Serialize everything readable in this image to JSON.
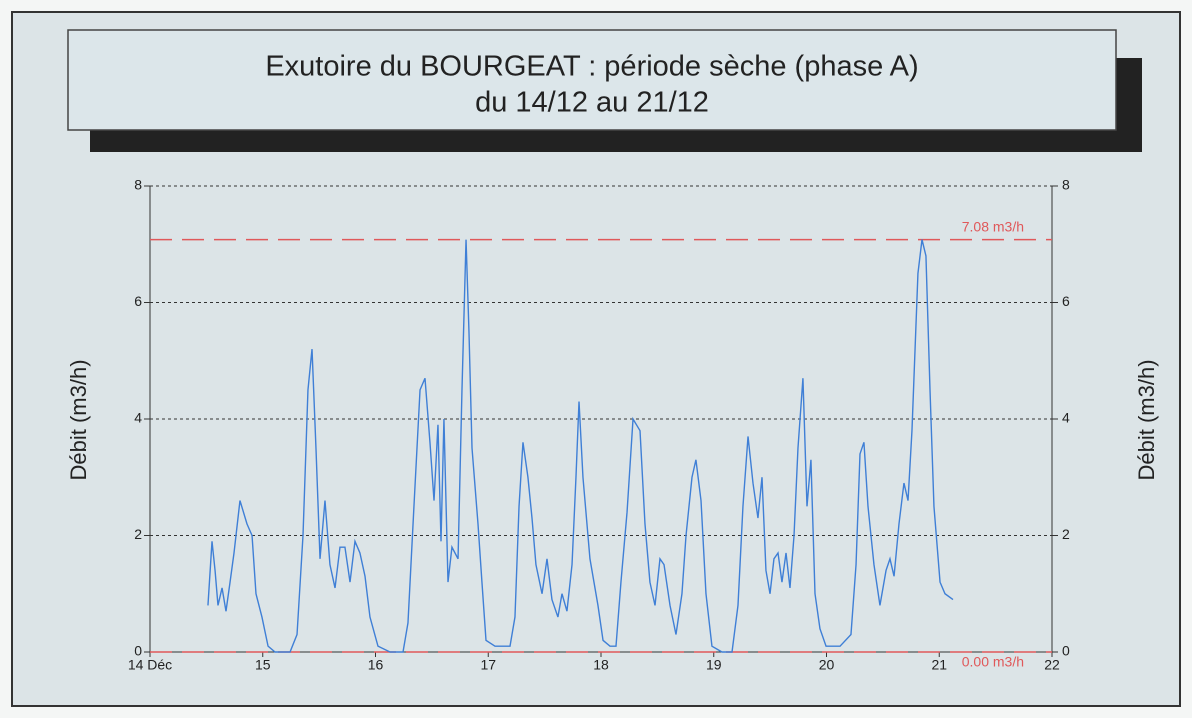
{
  "chart_data": {
    "type": "line",
    "title": "Exutoire du BOURGEAT : période sèche (phase A)",
    "subtitle": "du 14/12 au 21/12",
    "y_label": "Débit  (m3/h)",
    "y2_label": "Débit  (m3/h)",
    "xlim": [
      14,
      22
    ],
    "xticks": [
      {
        "value": 14,
        "label": "14 Déc"
      },
      15,
      16,
      17,
      18,
      19,
      20,
      21,
      22
    ],
    "ylim": [
      0,
      8
    ],
    "yticks": [
      0,
      2,
      4,
      6,
      8
    ],
    "y2lim": [
      0,
      8
    ],
    "y2ticks": [
      0,
      2,
      4,
      6,
      8
    ],
    "grid": true,
    "reference_lines": [
      {
        "value": 7.08,
        "label": "7.08 m3/h",
        "color": "#e0585a"
      },
      {
        "value": 0,
        "label": "0.00 m3/h",
        "color": "#e0585a"
      }
    ],
    "series": [
      {
        "color": "#3f7fd6",
        "x": [
          14.514,
          14.55,
          14.577,
          14.603,
          14.639,
          14.674,
          14.71,
          14.745,
          14.798,
          14.86,
          14.905,
          14.94,
          14.993,
          15.047,
          15.109,
          15.242,
          15.304,
          15.357,
          15.401,
          15.437,
          15.472,
          15.508,
          15.552,
          15.596,
          15.641,
          15.685,
          15.729,
          15.774,
          15.818,
          15.862,
          15.907,
          15.951,
          16.022,
          16.129,
          16.244,
          16.288,
          16.341,
          16.395,
          16.439,
          16.483,
          16.519,
          16.554,
          16.581,
          16.607,
          16.643,
          16.678,
          16.732,
          16.767,
          16.803,
          16.829,
          16.856,
          16.909,
          16.944,
          16.98,
          17.06,
          17.193,
          17.237,
          17.273,
          17.308,
          17.352,
          17.388,
          17.423,
          17.477,
          17.521,
          17.565,
          17.618,
          17.654,
          17.698,
          17.743,
          17.778,
          17.805,
          17.84,
          17.902,
          17.973,
          18.018,
          18.08,
          18.133,
          18.177,
          18.231,
          18.284,
          18.346,
          18.39,
          18.434,
          18.479,
          18.523,
          18.559,
          18.612,
          18.665,
          18.718,
          18.754,
          18.807,
          18.842,
          18.887,
          18.931,
          18.984,
          19.073,
          19.162,
          19.215,
          19.259,
          19.304,
          19.348,
          19.392,
          19.428,
          19.463,
          19.499,
          19.534,
          19.57,
          19.605,
          19.641,
          19.676,
          19.712,
          19.747,
          19.791,
          19.827,
          19.862,
          19.898,
          19.942,
          19.996,
          20.12,
          20.217,
          20.262,
          20.297,
          20.332,
          20.368,
          20.421,
          20.474,
          20.528,
          20.563,
          20.599,
          20.643,
          20.687,
          20.723,
          20.758,
          20.811,
          20.847,
          20.882,
          20.918,
          20.953,
          21.007,
          21.051,
          21.122
        ],
        "values": [
          0.8,
          1.9,
          1.4,
          0.8,
          1.1,
          0.7,
          1.2,
          1.7,
          2.6,
          2.2,
          2.0,
          1.0,
          0.6,
          0.1,
          0,
          0,
          0.3,
          2.0,
          4.5,
          5.2,
          3.5,
          1.6,
          2.6,
          1.5,
          1.1,
          1.8,
          1.8,
          1.2,
          1.9,
          1.7,
          1.3,
          0.6,
          0.1,
          0,
          0,
          0.5,
          2.5,
          4.5,
          4.7,
          3.6,
          2.6,
          3.9,
          1.9,
          4.0,
          1.2,
          1.8,
          1.6,
          4.5,
          7.08,
          5.5,
          3.5,
          2.2,
          1.2,
          0.2,
          0.1,
          0.1,
          0.6,
          2.5,
          3.6,
          3.0,
          2.3,
          1.5,
          1.0,
          1.6,
          0.9,
          0.6,
          1.0,
          0.7,
          1.5,
          3.0,
          4.3,
          3.0,
          1.6,
          0.8,
          0.2,
          0.1,
          0.1,
          1.2,
          2.4,
          4.0,
          3.8,
          2.2,
          1.2,
          0.8,
          1.6,
          1.5,
          0.8,
          0.3,
          1.0,
          2.0,
          3.0,
          3.3,
          2.6,
          1.0,
          0.1,
          0,
          0,
          0.8,
          2.5,
          3.7,
          2.9,
          2.3,
          3.0,
          1.4,
          1.0,
          1.6,
          1.7,
          1.2,
          1.7,
          1.1,
          2.0,
          3.5,
          4.7,
          2.5,
          3.3,
          1.0,
          0.4,
          0.1,
          0.1,
          0.3,
          1.5,
          3.4,
          3.6,
          2.5,
          1.5,
          0.8,
          1.4,
          1.6,
          1.3,
          2.2,
          2.9,
          2.6,
          3.8,
          6.5,
          7.08,
          6.8,
          4.5,
          2.5,
          1.2,
          1.0,
          0.9
        ]
      }
    ]
  }
}
